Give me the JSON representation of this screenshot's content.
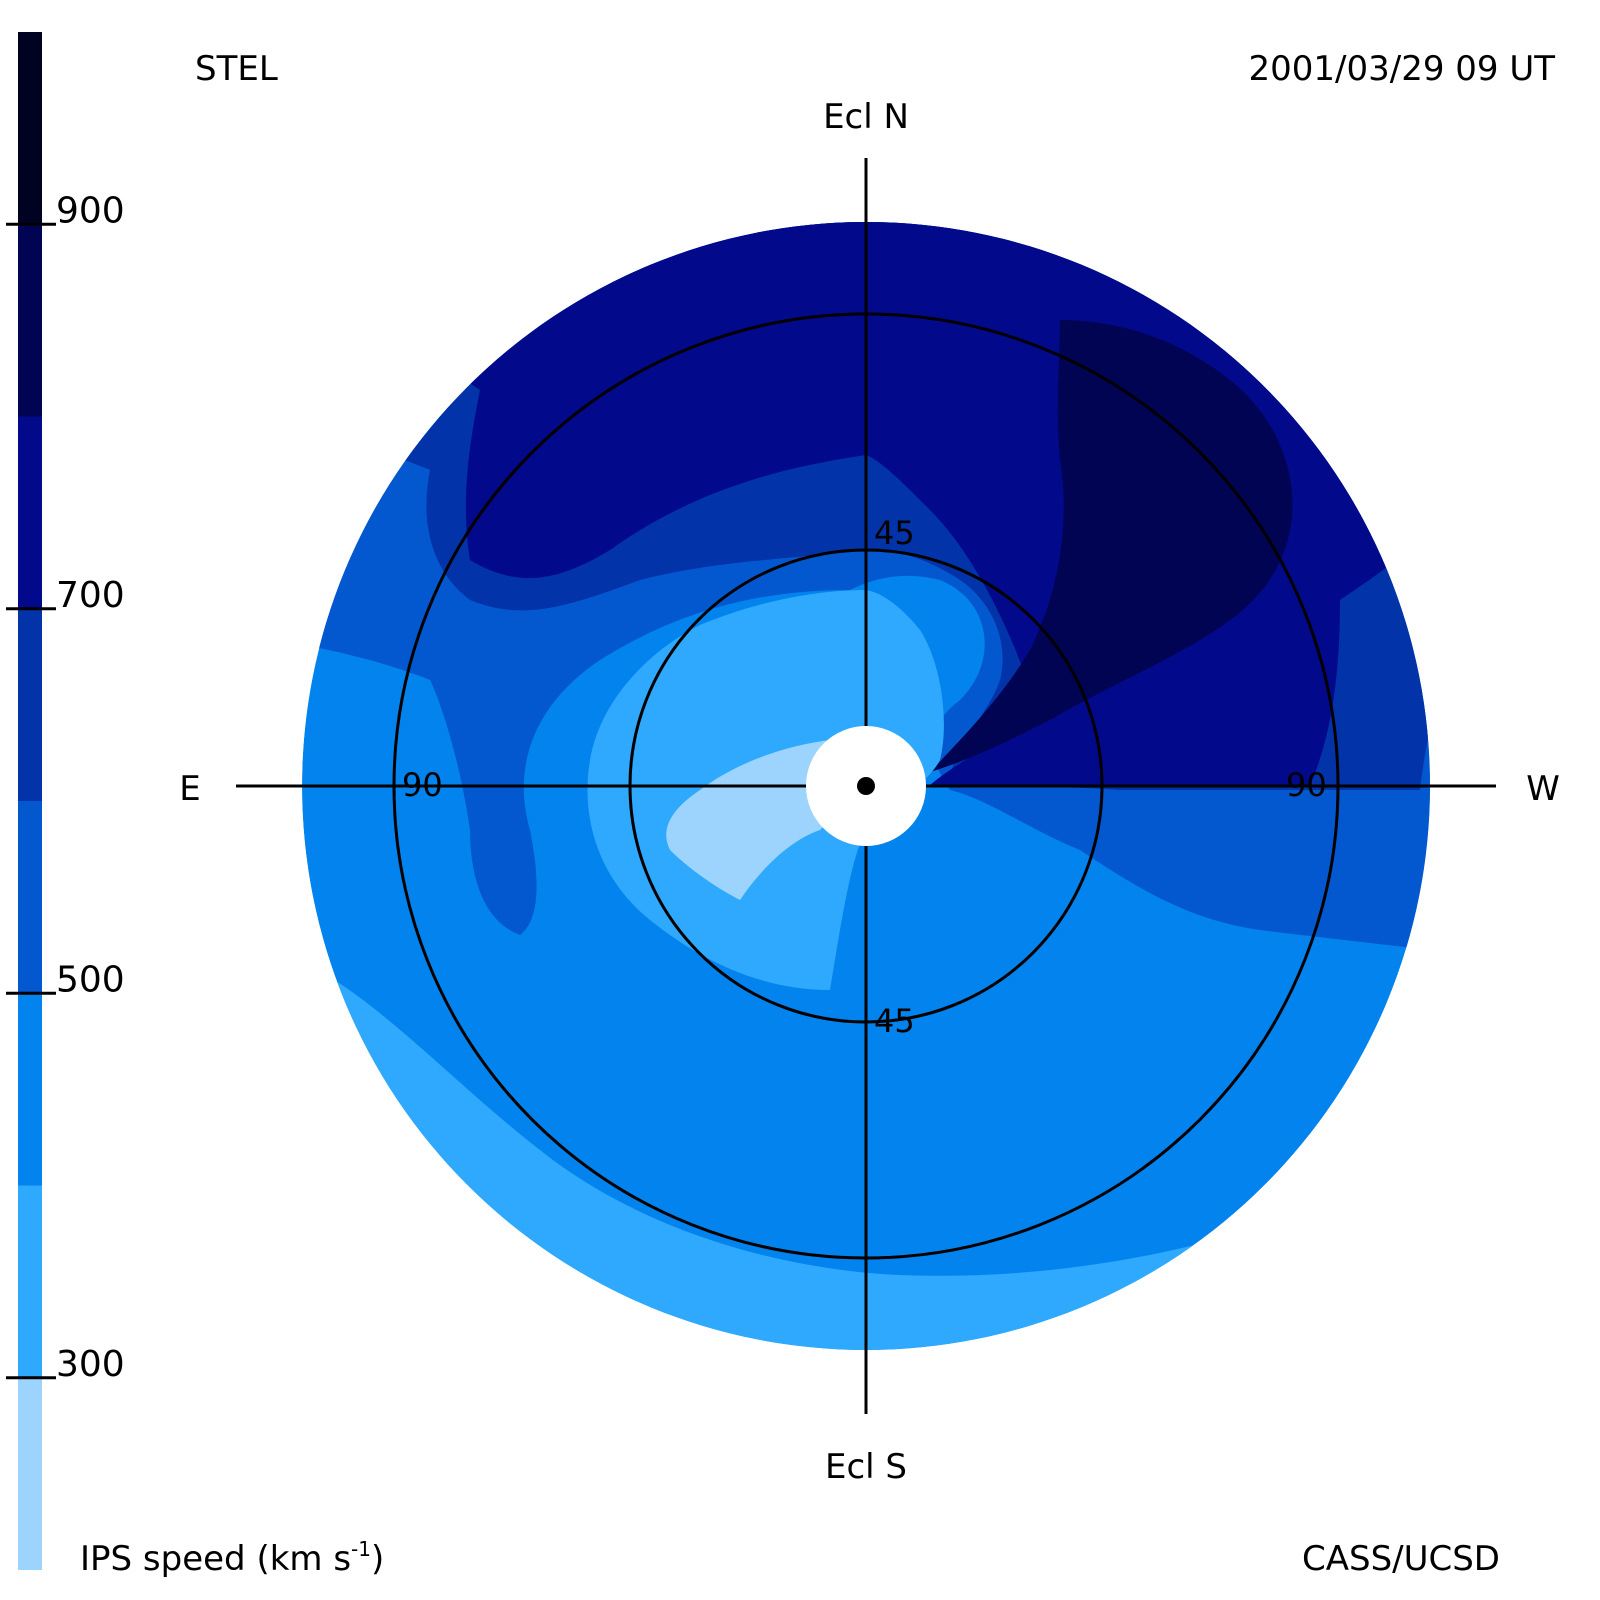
{
  "header": {
    "instrument": "STEL",
    "timestamp": "2001/03/29 09 UT"
  },
  "footer": {
    "colorbar_title": "IPS speed (km s",
    "colorbar_title_exponent": "-1",
    "colorbar_title_close": ")",
    "credit": "CASS/UCSD"
  },
  "directions": {
    "north": "Ecl N",
    "south": "Ecl S",
    "east": "E",
    "west": "W"
  },
  "rings": {
    "inner_top": "45",
    "inner_bottom": "45",
    "outer_left": "90",
    "outer_right": "90"
  },
  "colorbar": {
    "ticks": [
      {
        "value": 900,
        "label": "900"
      },
      {
        "value": 700,
        "label": "700"
      },
      {
        "value": 500,
        "label": "500"
      },
      {
        "value": 300,
        "label": "300"
      }
    ],
    "bands": [
      {
        "from": 200,
        "to": 300,
        "color": "#9dd4fd"
      },
      {
        "from": 300,
        "to": 400,
        "color": "#2fa9fd"
      },
      {
        "from": 400,
        "to": 500,
        "color": "#0383ed"
      },
      {
        "from": 500,
        "to": 600,
        "color": "#0358d0"
      },
      {
        "from": 600,
        "to": 700,
        "color": "#0333a8"
      },
      {
        "from": 700,
        "to": 800,
        "color": "#02098a"
      },
      {
        "from": 800,
        "to": 900,
        "color": "#010453"
      },
      {
        "from": 900,
        "to": 1000,
        "color": "#000222"
      }
    ]
  },
  "colors": {
    "speed_200_300": "#9dd4fd",
    "speed_300_400": "#2fa9fd",
    "speed_400_500": "#0383ed",
    "speed_500_600": "#0358d0",
    "speed_600_700": "#0333a8",
    "speed_700_800": "#02098a",
    "speed_800_900": "#010453"
  }
}
